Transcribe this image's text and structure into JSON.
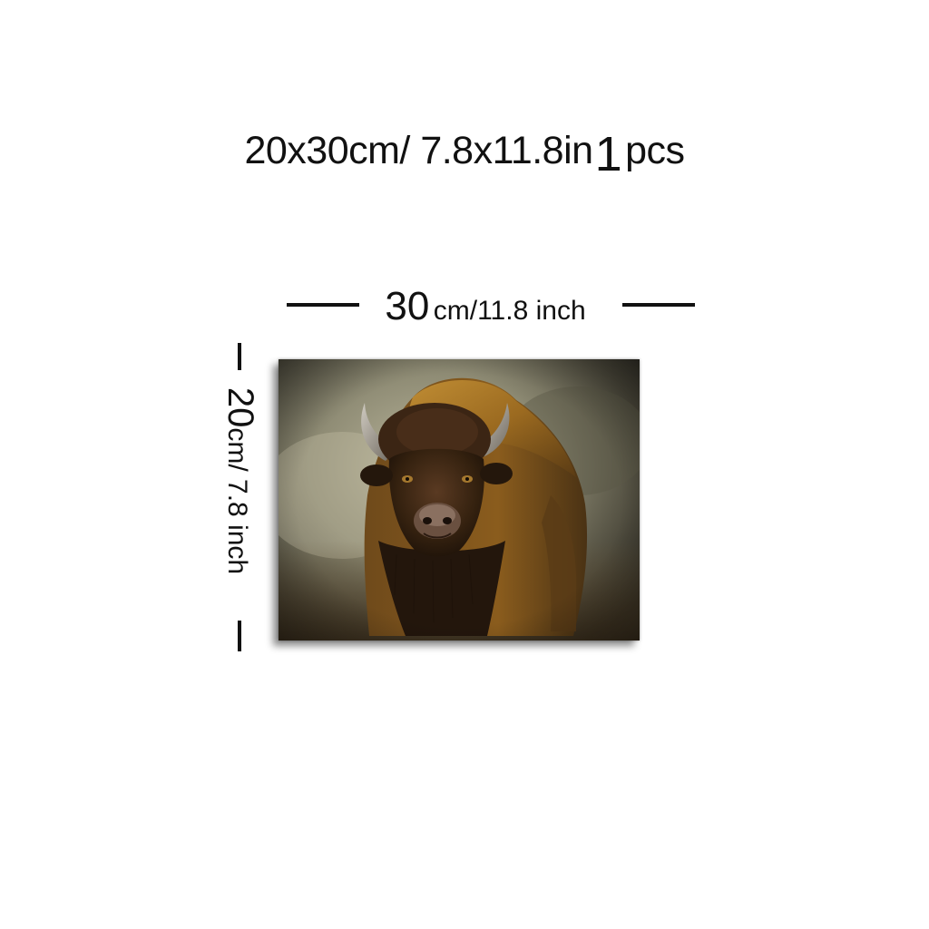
{
  "headline": {
    "size_text": "20x30cm/ 7.8x11.8in",
    "quantity": "1",
    "unit": "pcs"
  },
  "width_dimension": {
    "value": "30",
    "unit": "cm/11.8 inch"
  },
  "height_dimension": {
    "value": "20",
    "unit": "cm/ 7.8 inch"
  },
  "artwork": {
    "subject": "bison-painting",
    "colors": {
      "fog": "#b7b39a",
      "dark_bg": "#2c2a22",
      "fur_gold": "#9a6a1e",
      "fur_dark": "#3a2616",
      "horn": "#8f8a82"
    }
  }
}
